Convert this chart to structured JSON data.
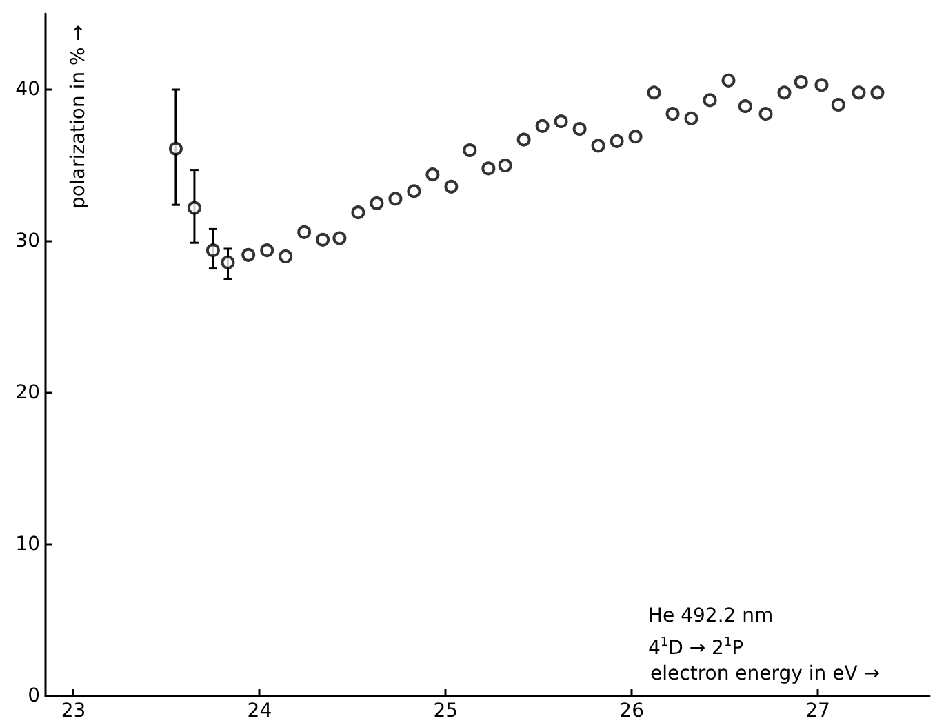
{
  "chart_data": {
    "type": "scatter",
    "xlabel": "electron energy in eV →",
    "ylabel": "polarization in % →",
    "annotations": [
      "He 492.2 nm",
      "4$^{1}$D → 2$^{1}$P"
    ],
    "x": [
      23.55,
      23.65,
      23.75,
      23.83,
      23.94,
      24.04,
      24.14,
      24.24,
      24.34,
      24.43,
      24.53,
      24.63,
      24.73,
      24.83,
      24.93,
      25.03,
      25.13,
      25.23,
      25.32,
      25.42,
      25.52,
      25.62,
      25.72,
      25.82,
      25.92,
      26.02,
      26.12,
      26.22,
      26.32,
      26.42,
      26.52,
      26.61,
      26.72,
      26.82,
      26.91,
      27.02,
      27.11,
      27.22,
      27.32
    ],
    "values": [
      36.1,
      32.2,
      29.4,
      28.6,
      29.1,
      29.4,
      29.0,
      30.6,
      30.1,
      30.2,
      31.9,
      32.5,
      32.8,
      33.3,
      34.4,
      33.6,
      36.0,
      34.8,
      35.0,
      36.7,
      37.6,
      37.9,
      37.4,
      36.3,
      36.6,
      36.9,
      39.8,
      38.4,
      38.1,
      39.3,
      40.6,
      38.9,
      38.4,
      39.8,
      40.5,
      40.3,
      39.0,
      39.8,
      39.8
    ],
    "errors": [
      [
        32.4,
        40.0
      ],
      [
        29.9,
        34.7
      ],
      [
        28.2,
        30.8
      ],
      [
        27.5,
        29.5
      ],
      null,
      null,
      null,
      null,
      null,
      null,
      null,
      null,
      null,
      null,
      null,
      null,
      null,
      null,
      null,
      null,
      null,
      null,
      null,
      null,
      null,
      null,
      null,
      null,
      null,
      null,
      null,
      null,
      null,
      null,
      null,
      null,
      null,
      null,
      null
    ],
    "color": "#000000",
    "marker": "circle",
    "grid": false,
    "xlim": [
      22.85,
      27.6
    ],
    "xticks": [
      23,
      24,
      25,
      26,
      27
    ],
    "ylim": [
      0,
      45
    ],
    "yticks": [
      0,
      10,
      20,
      30,
      40
    ]
  }
}
